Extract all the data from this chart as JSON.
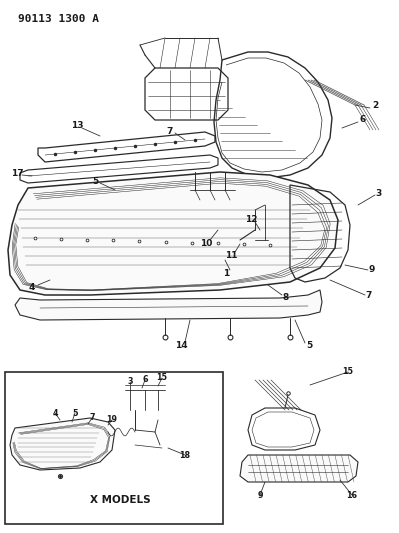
{
  "title": "90113 1300 A",
  "bg_color": "#ffffff",
  "line_color": "#2a2a2a",
  "text_color": "#1a1a1a",
  "figsize": [
    3.99,
    5.33
  ],
  "dpi": 100
}
